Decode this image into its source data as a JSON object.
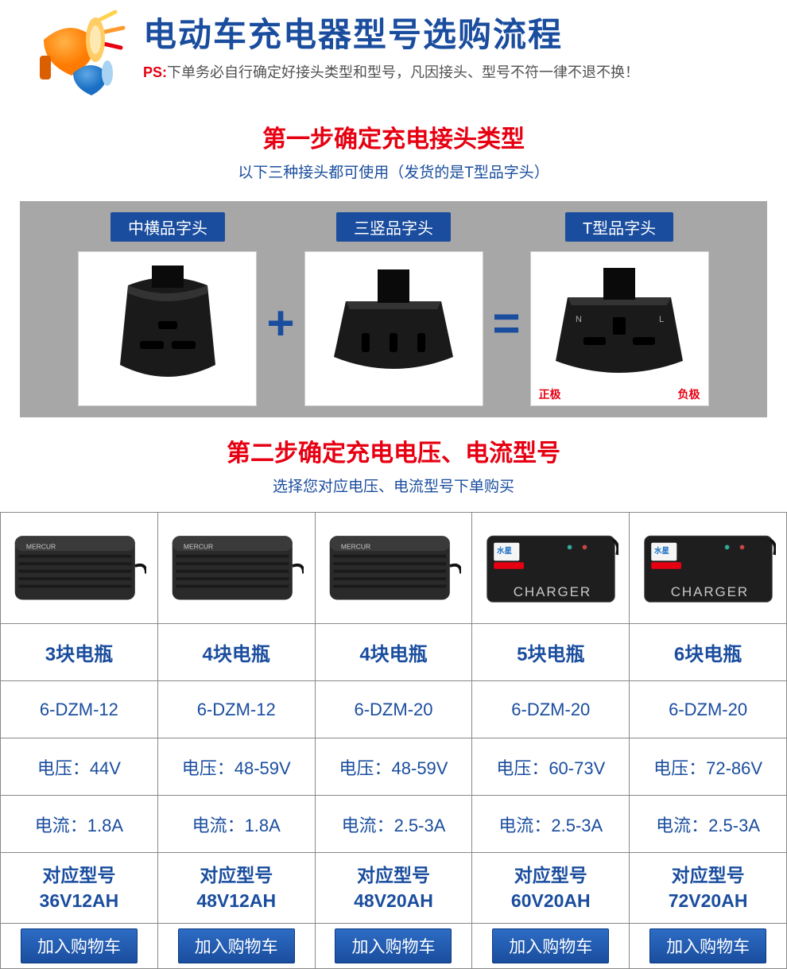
{
  "header": {
    "title": "电动车充电器型号选购流程",
    "ps_label": "PS:",
    "ps_text": "下单务必自行确定好接头类型和型号，凡因接头、型号不符一律不退不换！"
  },
  "step1": {
    "title": "第一步确定充电接头类型",
    "sub": "以下三种接头都可使用（发货的是T型品字头）",
    "plugs": [
      {
        "label": "中横品字头"
      },
      {
        "label": "三竖品字头"
      },
      {
        "label": "T型品字头"
      }
    ],
    "op_plus": "+",
    "op_eq": "=",
    "polarity_pos": "正极",
    "polarity_neg": "负极"
  },
  "step2": {
    "title": "第二步确定充电电压、电流型号",
    "sub": "选择您对应电压、电流型号下单购买"
  },
  "products": [
    {
      "charger_style": "black",
      "battery": "3块电瓶",
      "dzm": "6-DZM-12",
      "voltage": "电压：44V",
      "current": "电流：1.8A",
      "model_label": "对应型号",
      "model": "36V12AH",
      "btn": "加入购物车"
    },
    {
      "charger_style": "black",
      "battery": "4块电瓶",
      "dzm": "6-DZM-12",
      "voltage": "电压：48-59V",
      "current": "电流：1.8A",
      "model_label": "对应型号",
      "model": "48V12AH",
      "btn": "加入购物车"
    },
    {
      "charger_style": "black",
      "battery": "4块电瓶",
      "dzm": "6-DZM-20",
      "voltage": "电压：48-59V",
      "current": "电流：2.5-3A",
      "model_label": "对应型号",
      "model": "48V20AH",
      "btn": "加入购物车"
    },
    {
      "charger_style": "dark",
      "battery": "5块电瓶",
      "dzm": "6-DZM-20",
      "voltage": "电压：60-73V",
      "current": "电流：2.5-3A",
      "model_label": "对应型号",
      "model": "60V20AH",
      "btn": "加入购物车"
    },
    {
      "charger_style": "dark",
      "battery": "6块电瓶",
      "dzm": "6-DZM-20",
      "voltage": "电压：72-86V",
      "current": "电流：2.5-3A",
      "model_label": "对应型号",
      "model": "72V20AH",
      "btn": "加入购物车"
    }
  ],
  "colors": {
    "brand_blue": "#1a4d9e",
    "accent_red": "#e60012",
    "strip_gray": "#a7a7a7",
    "border_gray": "#888888",
    "btn_top": "#2d6cc4",
    "btn_bottom": "#1a4d9e"
  }
}
